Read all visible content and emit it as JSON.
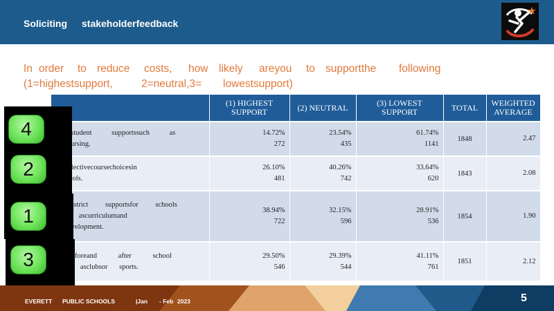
{
  "header": {
    "title_left": "Soliciting",
    "title_right": "stakeholderfeedback",
    "logo_icon": "star-figure-logo-icon"
  },
  "question": {
    "line1": [
      "In",
      "order",
      "to",
      "reduce",
      "costs,",
      "how",
      "likely",
      "areyou",
      "to",
      "supportthe",
      "following"
    ],
    "line2": [
      "(1=highestsupport,",
      "2=neutral,3=",
      "lowestsupport)"
    ]
  },
  "table": {
    "headers": [
      "",
      "(1) HIGHEST SUPPORT",
      "(2) NEUTRAL",
      "(3) LOWEST SUPPORT",
      "TOTAL",
      "WEIGHTED AVERAGE"
    ],
    "rows": [
      {
        "item_line1": "somestudent supportssuch as",
        "item_line2": "ork,nursing.",
        "highest_pct": "14.72%",
        "highest_n": "272",
        "neutral_pct": "23.54%",
        "neutral_n": "435",
        "lowest_pct": "61.74%",
        "lowest_n": "1141",
        "total": "1848",
        "weighted": "2.47"
      },
      {
        "item_line1": "omeelectivecoursechoicesin",
        "item_line2": "yschools.",
        "highest_pct": "26.10%",
        "highest_n": "481",
        "neutral_pct": "40.26%",
        "neutral_n": "742",
        "lowest_pct": "33.64%",
        "lowest_n": "620",
        "total": "1843",
        "weighted": "2.08"
      },
      {
        "item_line1": "omedistrict supportsfor schools",
        "item_line2": "uch ascurriculumand",
        "item_line3": "naldevelopment.",
        "highest_pct": "38.94%",
        "highest_n": "722",
        "neutral_pct": "32.15%",
        "neutral_n": "596",
        "lowest_pct": "28.91%",
        "lowest_n": "536",
        "total": "1854",
        "weighted": "1.90"
      },
      {
        "item_line1": "omebeforeand after school",
        "item_line2": "such asclubsor sports.",
        "highest_pct": "29.50%",
        "highest_n": "546",
        "neutral_pct": "29.39%",
        "neutral_n": "544",
        "lowest_pct": "41.11%",
        "lowest_n": "761",
        "total": "1851",
        "weighted": "2.12"
      }
    ]
  },
  "badges": [
    "4",
    "2",
    "1",
    "3"
  ],
  "footer": {
    "org1": "EVERETT",
    "org2": "PUBLIC SCHOOLS",
    "date1": "|Jan",
    "date2": "- Feb",
    "year": "2023",
    "page": "5"
  },
  "colors": {
    "header_bg": "#1d5b8c",
    "question_text": "#e0793a",
    "table_header_bg": "#1f5c99",
    "row_odd": "#d2dbea",
    "row_even": "#e9edf5",
    "badge_green": "#6ee45a",
    "footer_bg": "#8a3d14"
  }
}
